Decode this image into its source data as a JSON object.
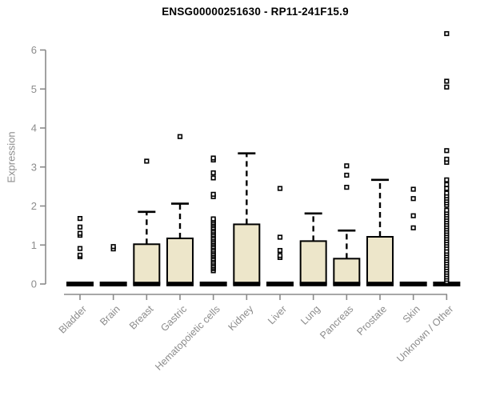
{
  "chart_data": {
    "type": "boxplot",
    "title": "ENSG00000251630 - RP11-241F15.9",
    "ylabel": "Expression",
    "ylim": [
      0,
      6.5
    ],
    "yticks": [
      0,
      1,
      2,
      3,
      4,
      5,
      6
    ],
    "grid": false,
    "legend": null,
    "categories": [
      "Bladder",
      "Brain",
      "Breast",
      "Gastric",
      "Hematopoietic cells",
      "Kidney",
      "Liver",
      "Lung",
      "Pancreas",
      "Prostate",
      "Skin",
      "Unknown / Other"
    ],
    "boxes": [
      {
        "category": "Bladder",
        "q1": 0,
        "median": 0,
        "q3": 0,
        "whisker_low": 0,
        "whisker_high": 0,
        "outliers": [
          0.7,
          0.74,
          0.91,
          1.25,
          1.3,
          1.46,
          1.68
        ]
      },
      {
        "category": "Brain",
        "q1": 0,
        "median": 0,
        "q3": 0,
        "whisker_low": 0,
        "whisker_high": 0,
        "outliers": [
          0.9,
          0.96
        ]
      },
      {
        "category": "Breast",
        "q1": 0,
        "median": 0,
        "q3": 1.02,
        "whisker_low": 0,
        "whisker_high": 1.85,
        "outliers": [
          3.15
        ]
      },
      {
        "category": "Gastric",
        "q1": 0,
        "median": 0,
        "q3": 1.17,
        "whisker_low": 0,
        "whisker_high": 2.06,
        "outliers": [
          3.78
        ]
      },
      {
        "category": "Hematopoietic cells",
        "q1": 0,
        "median": 0,
        "q3": 0,
        "whisker_low": 0,
        "whisker_high": 0,
        "outliers": [
          0.34,
          0.39,
          0.43,
          0.47,
          0.52,
          0.56,
          0.61,
          0.65,
          0.7,
          0.74,
          0.78,
          0.83,
          0.87,
          0.92,
          0.96,
          1.01,
          1.05,
          1.09,
          1.14,
          1.18,
          1.23,
          1.27,
          1.32,
          1.36,
          1.41,
          1.45,
          1.5,
          1.54,
          1.58,
          1.63,
          1.67,
          2.24,
          2.3,
          2.72,
          2.85,
          3.18,
          3.23
        ]
      },
      {
        "category": "Kidney",
        "q1": 0,
        "median": 0,
        "q3": 1.53,
        "whisker_low": 0,
        "whisker_high": 3.35,
        "outliers": []
      },
      {
        "category": "Liver",
        "q1": 0,
        "median": 0,
        "q3": 0,
        "whisker_low": 0,
        "whisker_high": 0,
        "outliers": [
          0.68,
          0.73,
          0.86,
          1.2,
          2.45
        ]
      },
      {
        "category": "Lung",
        "q1": 0,
        "median": 0,
        "q3": 1.1,
        "whisker_low": 0,
        "whisker_high": 1.81,
        "outliers": []
      },
      {
        "category": "Pancreas",
        "q1": 0,
        "median": 0,
        "q3": 0.65,
        "whisker_low": 0,
        "whisker_high": 1.37,
        "outliers": [
          2.48,
          2.79,
          3.03
        ]
      },
      {
        "category": "Prostate",
        "q1": 0,
        "median": 0,
        "q3": 1.21,
        "whisker_low": 0,
        "whisker_high": 2.67,
        "outliers": []
      },
      {
        "category": "Skin",
        "q1": 0,
        "median": 0,
        "q3": 0,
        "whisker_low": 0,
        "whisker_high": 0,
        "outliers": [
          1.44,
          1.75,
          2.19,
          2.43
        ]
      },
      {
        "category": "Unknown / Other",
        "q1": 0,
        "median": 0,
        "q3": 0,
        "whisker_low": 0,
        "whisker_high": 0,
        "outliers": [
          0.06,
          0.12,
          0.18,
          0.24,
          0.3,
          0.36,
          0.42,
          0.48,
          0.54,
          0.6,
          0.66,
          0.72,
          0.78,
          0.84,
          0.92,
          0.99,
          1.05,
          1.11,
          1.17,
          1.23,
          1.29,
          1.35,
          1.41,
          1.47,
          1.53,
          1.59,
          1.65,
          1.71,
          1.77,
          1.83,
          1.89,
          2.02,
          2.08,
          2.14,
          2.2,
          2.26,
          2.33,
          2.45,
          2.55,
          2.67,
          3.12,
          3.2,
          3.42,
          5.05,
          5.2,
          6.42
        ]
      }
    ],
    "colors": {
      "box_fill": "#EDE6CA",
      "box_border": "#000000",
      "median": "#000000",
      "axis": "#8A8A8A",
      "tick_label": "#8C8C8C",
      "title": "#000000",
      "background": "#FFFFFF"
    }
  }
}
